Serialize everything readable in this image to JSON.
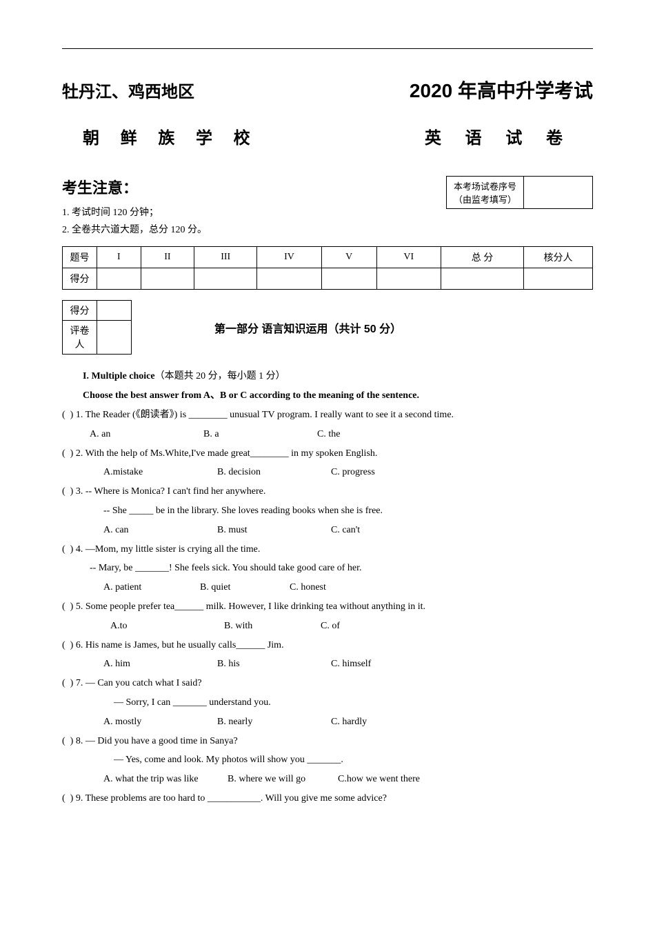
{
  "colors": {
    "text": "#000000",
    "background": "#ffffff",
    "border": "#000000"
  },
  "fonts": {
    "heading": "SimHei",
    "body_cn": "SimSun",
    "body_en": "Times New Roman",
    "kaiti": "KaiTi"
  },
  "header": {
    "region": "牡丹江、鸡西地区",
    "year_title": "2020 年高中升学考试",
    "school": "朝 鲜 族 学 校",
    "subject": "英  语  试  卷"
  },
  "notice": {
    "title": "考生注意：",
    "items": [
      "1. 考试时间 120 分钟；",
      "2. 全卷共六道大题，总分 120 分。"
    ]
  },
  "seq_box": {
    "line1": "本考场试卷序号",
    "line2": "（由监考填写）"
  },
  "score_table": {
    "row_labels": [
      "题号",
      "得分"
    ],
    "columns": [
      "I",
      "II",
      "III",
      "IV",
      "V",
      "VI",
      "总     分",
      "核分人"
    ]
  },
  "mini_table": {
    "rows": [
      "得分",
      "评卷人"
    ]
  },
  "section1": {
    "title": "第一部分  语言知识运用（共计 50 分）",
    "sub_title_en": "I. Multiple choice",
    "sub_title_cn": "（本题共 20 分，每小题 1 分）",
    "instruction": "Choose the best answer from A、B or C according to the meaning of the sentence."
  },
  "questions": [
    {
      "num": "1",
      "text_before": "The Reader (",
      "text_cn": "《朗读者》",
      "text_after": ") is ________ unusual TV program. I really want to see it a second time.",
      "choices": [
        "A. an",
        "B. a",
        "C. the"
      ],
      "choice_indent": 40
    },
    {
      "num": "2",
      "text": "With the help of Ms.White,I've made great________ in my spoken English.",
      "choices": [
        "A.mistake",
        "B. decision",
        "C. progress"
      ]
    },
    {
      "num": "3",
      "text": "-- Where is Monica? I can't find her anywhere.",
      "followup": "-- She _____ be in the library. She loves reading books when she is free.",
      "choices": [
        "A. can",
        "B. must",
        "C. can't"
      ]
    },
    {
      "num": "4",
      "text": "—Mom, my little sister is crying all the time.",
      "followup": "-- Mary, be _______! She feels sick. You should take good care of her.",
      "followup_indent": 40,
      "choices": [
        "A. patient",
        "B. quiet",
        "C. honest"
      ],
      "choice_widths": [
        140,
        130,
        100
      ]
    },
    {
      "num": "5",
      "text": "Some people prefer tea______ milk. However, I like drinking tea without anything in it.",
      "choices": [
        "A.to",
        "B. with",
        "C. of"
      ],
      "choice_indent": 70,
      "choice_widths": [
        165,
        140,
        100
      ]
    },
    {
      "num": "6",
      "text": "His name is James, but he usually calls______ Jim.",
      "choices": [
        "A. him",
        "B. his",
        "C. himself"
      ]
    },
    {
      "num": "7",
      "text": "— Can you catch what I said?",
      "followup": "— Sorry, I can _______ understand you.",
      "followup_indent": 75,
      "choices": [
        "A. mostly",
        "B. nearly",
        "C. hardly"
      ]
    },
    {
      "num": "8",
      "text": "— Did you have a good time in Sanya?",
      "followup": "— Yes, come and look. My photos will show you _______.",
      "followup_indent": 75,
      "choices": [
        "A. what the trip was like",
        "B. where we will go",
        "C.how we went there"
      ],
      "choice_widths": [
        180,
        160,
        160
      ],
      "choice_indent": 60
    },
    {
      "num": "9",
      "text": "These problems are too hard to ___________. Will you give me some advice?"
    }
  ]
}
